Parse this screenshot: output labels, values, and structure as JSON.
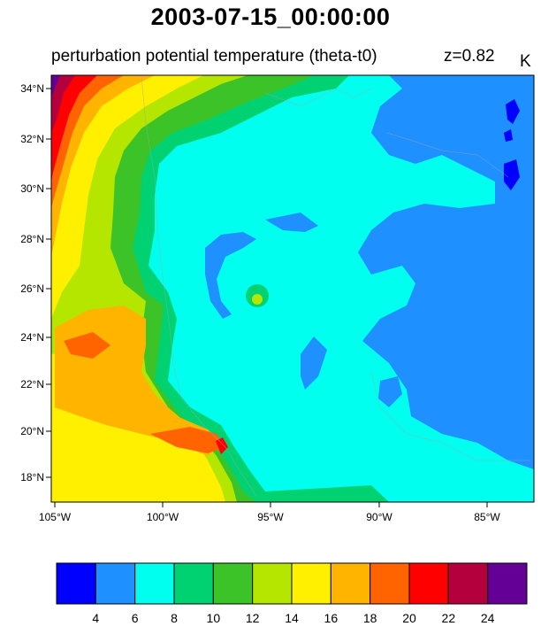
{
  "title": "2003-07-15_00:00:00",
  "subtitle": "perturbation potential temperature (theta-t0)",
  "level_label": "z=0.82",
  "units": "K",
  "lat_ticks": [
    "34°N",
    "32°N",
    "30°N",
    "28°N",
    "26°N",
    "24°N",
    "22°N",
    "20°N",
    "18°N"
  ],
  "lon_ticks": [
    "105°W",
    "100°W",
    "95°W",
    "90°W",
    "85°W"
  ],
  "colorbar": {
    "colors": [
      "#0000ff",
      "#1e90ff",
      "#00ffee",
      "#00d272",
      "#3cc328",
      "#b4e600",
      "#fff000",
      "#ffb400",
      "#ff6400",
      "#ff0000",
      "#b4003c",
      "#640096"
    ],
    "labels": [
      "4",
      "6",
      "8",
      "10",
      "12",
      "14",
      "16",
      "18",
      "20",
      "22",
      "24"
    ]
  }
}
